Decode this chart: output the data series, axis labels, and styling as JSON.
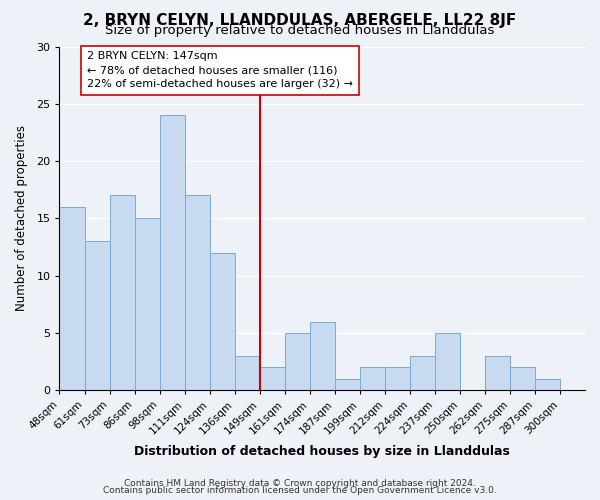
{
  "title": "2, BRYN CELYN, LLANDDULAS, ABERGELE, LL22 8JF",
  "subtitle": "Size of property relative to detached houses in Llanddulas",
  "xlabel": "Distribution of detached houses by size in Llanddulas",
  "ylabel": "Number of detached properties",
  "bin_labels": [
    "48sqm",
    "61sqm",
    "73sqm",
    "86sqm",
    "98sqm",
    "111sqm",
    "124sqm",
    "136sqm",
    "149sqm",
    "161sqm",
    "174sqm",
    "187sqm",
    "199sqm",
    "212sqm",
    "224sqm",
    "237sqm",
    "250sqm",
    "262sqm",
    "275sqm",
    "287sqm",
    "300sqm"
  ],
  "bar_values": [
    16,
    13,
    17,
    15,
    24,
    17,
    12,
    3,
    2,
    5,
    6,
    1,
    2,
    2,
    3,
    5,
    0,
    3,
    2,
    1,
    0
  ],
  "bar_color": "#c8daf0",
  "bar_edge_color": "#7aaad0",
  "vline_label_index": 8,
  "vline_color": "#cc0000",
  "annotation_title": "2 BRYN CELYN: 147sqm",
  "annotation_line1": "← 78% of detached houses are smaller (116)",
  "annotation_line2": "22% of semi-detached houses are larger (32) →",
  "annotation_box_facecolor": "#ffffff",
  "annotation_box_edgecolor": "#cc0000",
  "ylim": [
    0,
    30
  ],
  "yticks": [
    0,
    5,
    10,
    15,
    20,
    25,
    30
  ],
  "footer1": "Contains HM Land Registry data © Crown copyright and database right 2024.",
  "footer2": "Contains public sector information licensed under the Open Government Licence v3.0.",
  "background_color": "#eef2f8",
  "grid_color": "#ffffff",
  "title_fontsize": 11,
  "subtitle_fontsize": 9.5,
  "xlabel_fontsize": 9,
  "ylabel_fontsize": 8.5,
  "tick_fontsize": 7.5,
  "footer_fontsize": 6.5,
  "annotation_fontsize": 8
}
